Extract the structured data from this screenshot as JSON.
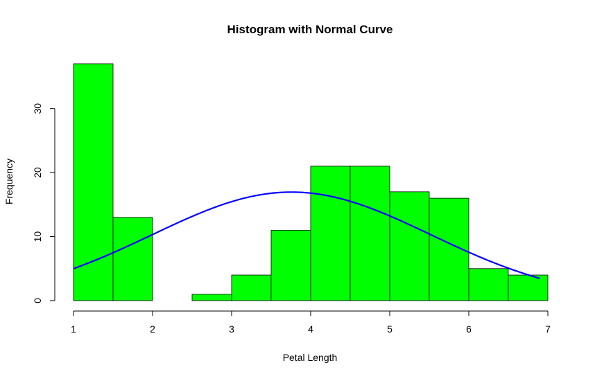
{
  "chart_data": {
    "type": "bar",
    "title": "Histogram with Normal Curve",
    "xlabel": "Petal Length",
    "ylabel": "Frequency",
    "bins": [
      {
        "from": 1.0,
        "to": 1.5,
        "count": 37
      },
      {
        "from": 1.5,
        "to": 2.0,
        "count": 13
      },
      {
        "from": 2.0,
        "to": 2.5,
        "count": 0
      },
      {
        "from": 2.5,
        "to": 3.0,
        "count": 1
      },
      {
        "from": 3.0,
        "to": 3.5,
        "count": 4
      },
      {
        "from": 3.5,
        "to": 4.0,
        "count": 11
      },
      {
        "from": 4.0,
        "to": 4.5,
        "count": 21
      },
      {
        "from": 4.5,
        "to": 5.0,
        "count": 21
      },
      {
        "from": 5.0,
        "to": 5.5,
        "count": 17
      },
      {
        "from": 5.5,
        "to": 6.0,
        "count": 16
      },
      {
        "from": 6.0,
        "to": 6.5,
        "count": 5
      },
      {
        "from": 6.5,
        "to": 7.0,
        "count": 4
      }
    ],
    "normal_curve": {
      "mean": 3.758,
      "sd": 1.765,
      "scale": 75,
      "x_range": [
        1.0,
        6.9
      ]
    },
    "xlim": [
      1,
      7
    ],
    "ylim": [
      0,
      37
    ],
    "xticks": [
      "1",
      "2",
      "3",
      "4",
      "5",
      "6",
      "7"
    ],
    "yticks": [
      "0",
      "10",
      "20",
      "30"
    ],
    "colors": {
      "bar_fill": "#00ff00",
      "bar_stroke": "#000000",
      "curve": "#0000ff",
      "axis": "#000000"
    },
    "grid": false
  }
}
